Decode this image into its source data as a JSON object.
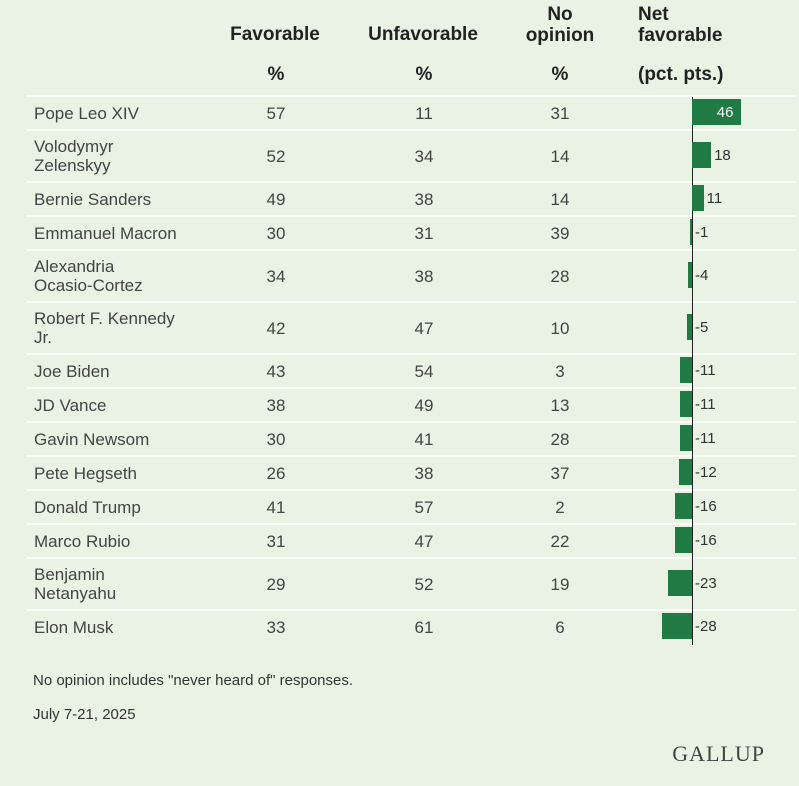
{
  "headers": {
    "favorable": "Favorable",
    "unfavorable": "Unfavorable",
    "no_opinion": [
      "No",
      "opinion"
    ],
    "net": [
      "Net",
      "favorable"
    ],
    "pct": "%",
    "net_unit": "(pct. pts.)"
  },
  "footnote": "No opinion includes \"never heard of\" responses.",
  "date": "July 7-21, 2025",
  "logo": "GALLUP",
  "colors": {
    "bar": "#1f7a44",
    "background": "#eaf2e4"
  },
  "chart_data": {
    "type": "table",
    "columns": [
      "Favorable %",
      "Unfavorable %",
      "No opinion %",
      "Net favorable (pct. pts.)"
    ],
    "rows": [
      {
        "name": [
          "Pope Leo XIV"
        ],
        "favorable": 57,
        "unfavorable": 11,
        "no_opinion": 31,
        "net": 46
      },
      {
        "name": [
          "Volodymyr",
          "Zelenskyy"
        ],
        "favorable": 52,
        "unfavorable": 34,
        "no_opinion": 14,
        "net": 18
      },
      {
        "name": [
          "Bernie Sanders"
        ],
        "favorable": 49,
        "unfavorable": 38,
        "no_opinion": 14,
        "net": 11
      },
      {
        "name": [
          "Emmanuel Macron"
        ],
        "favorable": 30,
        "unfavorable": 31,
        "no_opinion": 39,
        "net": -1
      },
      {
        "name": [
          "Alexandria",
          "Ocasio-Cortez"
        ],
        "favorable": 34,
        "unfavorable": 38,
        "no_opinion": 28,
        "net": -4
      },
      {
        "name": [
          "Robert F. Kennedy",
          "Jr."
        ],
        "favorable": 42,
        "unfavorable": 47,
        "no_opinion": 10,
        "net": -5
      },
      {
        "name": [
          "Joe Biden"
        ],
        "favorable": 43,
        "unfavorable": 54,
        "no_opinion": 3,
        "net": -11
      },
      {
        "name": [
          "JD Vance"
        ],
        "favorable": 38,
        "unfavorable": 49,
        "no_opinion": 13,
        "net": -11
      },
      {
        "name": [
          "Gavin Newsom"
        ],
        "favorable": 30,
        "unfavorable": 41,
        "no_opinion": 28,
        "net": -11
      },
      {
        "name": [
          "Pete Hegseth"
        ],
        "favorable": 26,
        "unfavorable": 38,
        "no_opinion": 37,
        "net": -12
      },
      {
        "name": [
          "Donald Trump"
        ],
        "favorable": 41,
        "unfavorable": 57,
        "no_opinion": 2,
        "net": -16
      },
      {
        "name": [
          "Marco Rubio"
        ],
        "favorable": 31,
        "unfavorable": 47,
        "no_opinion": 22,
        "net": -16
      },
      {
        "name": [
          "Benjamin",
          "Netanyahu"
        ],
        "favorable": 29,
        "unfavorable": 52,
        "no_opinion": 19,
        "net": -23
      },
      {
        "name": [
          "Elon Musk"
        ],
        "favorable": 33,
        "unfavorable": 61,
        "no_opinion": 6,
        "net": -28
      }
    ]
  }
}
